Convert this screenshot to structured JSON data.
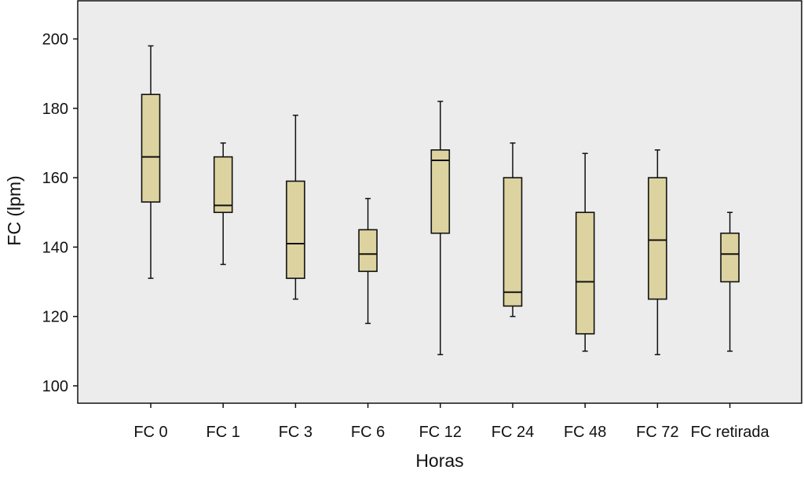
{
  "chart_data": {
    "type": "box",
    "title": "",
    "xlabel": "Horas",
    "ylabel": "FC (lpm)",
    "ylim": [
      95,
      211
    ],
    "yticks": [
      100,
      120,
      140,
      160,
      180,
      200
    ],
    "grid": false,
    "categories": [
      "FC 0",
      "FC 1",
      "FC 3",
      "FC 6",
      "FC 12",
      "FC 24",
      "FC 48",
      "FC 72",
      "FC retirada"
    ],
    "boxes": [
      {
        "min": 131,
        "q1": 153,
        "median": 166,
        "q3": 184,
        "max": 198
      },
      {
        "min": 135,
        "q1": 150,
        "median": 152,
        "q3": 166,
        "max": 170
      },
      {
        "min": 125,
        "q1": 131,
        "median": 141,
        "q3": 159,
        "max": 178
      },
      {
        "min": 118,
        "q1": 133,
        "median": 138,
        "q3": 145,
        "max": 154
      },
      {
        "min": 109,
        "q1": 144,
        "median": 165,
        "q3": 168,
        "max": 182
      },
      {
        "min": 120,
        "q1": 123,
        "median": 127,
        "q3": 160,
        "max": 170
      },
      {
        "min": 110,
        "q1": 115,
        "median": 130,
        "q3": 150,
        "max": 167
      },
      {
        "min": 109,
        "q1": 125,
        "median": 142,
        "q3": 160,
        "max": 168
      },
      {
        "min": 110,
        "q1": 130,
        "median": 138,
        "q3": 144,
        "max": 150
      }
    ],
    "colors": {
      "plot_background": "#ececec",
      "box_fill": "#dcd3a0",
      "stroke": "#111111"
    }
  }
}
